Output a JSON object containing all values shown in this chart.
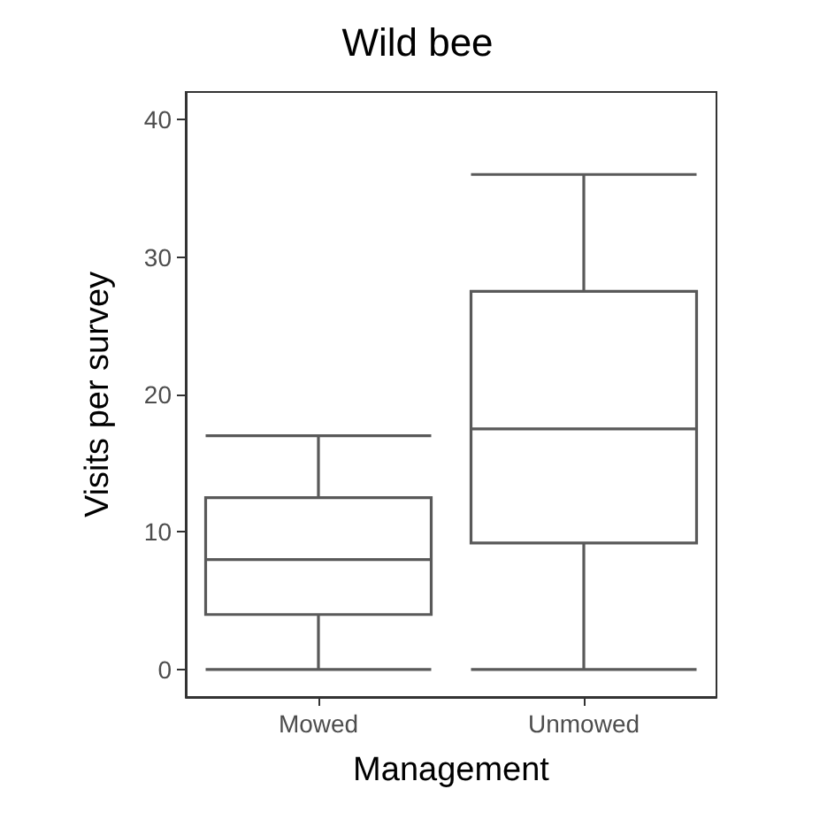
{
  "chart_data": {
    "type": "box",
    "title": "Wild bee",
    "xlabel": "Management",
    "ylabel": "Visits per survey",
    "categories": [
      "Mowed",
      "Unmowed"
    ],
    "series": [
      {
        "color": "#595959",
        "boxes": [
          {
            "low": 0,
            "q1": 4,
            "median": 8,
            "q3": 12.5,
            "high": 17
          },
          {
            "low": 0,
            "q1": 9.2,
            "median": 17.5,
            "q3": 27.5,
            "high": 36
          }
        ]
      }
    ],
    "ylim": [
      -2,
      42
    ],
    "yticks": [
      0,
      10,
      20,
      30,
      40
    ]
  }
}
